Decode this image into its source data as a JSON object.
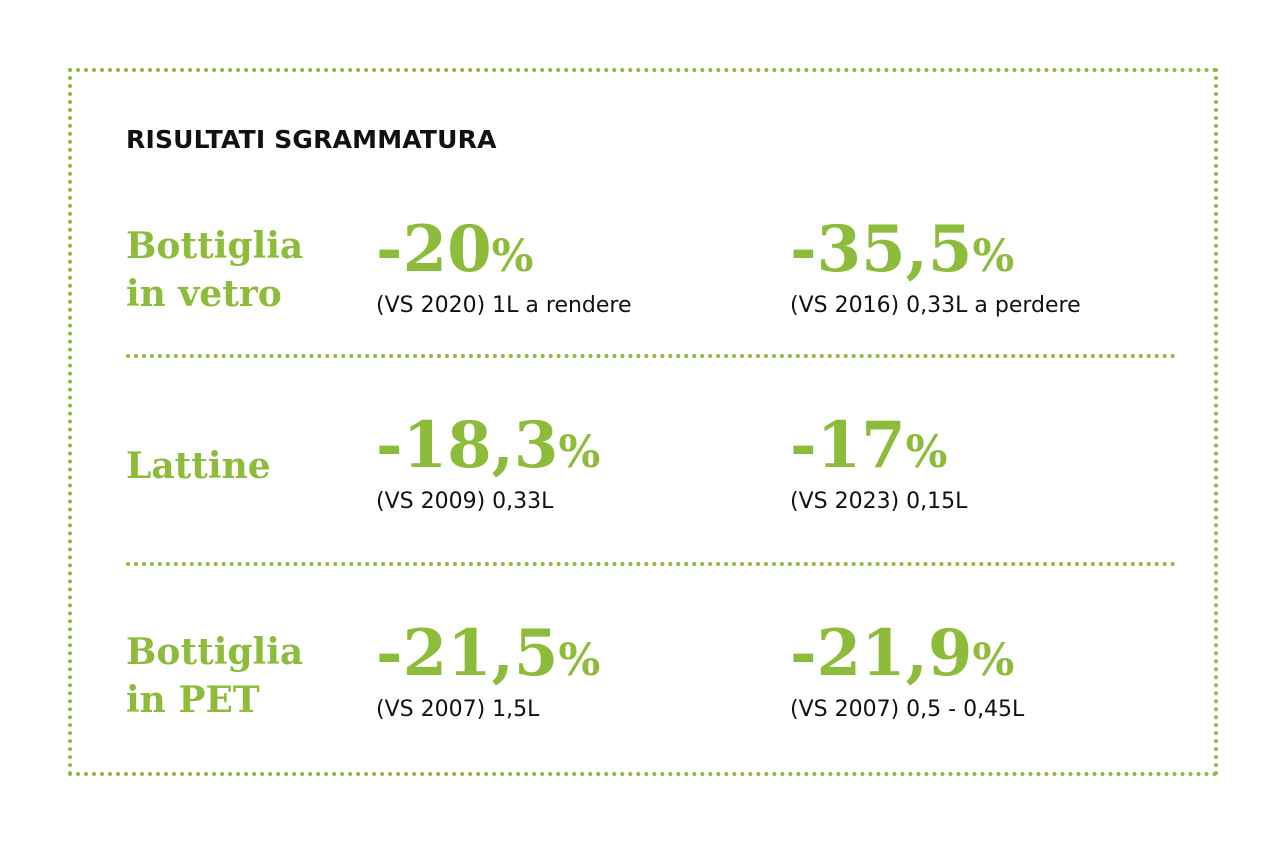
{
  "title": "RISULTATI SGRAMMATURA",
  "rows": [
    {
      "category": "Bottiglia\nin vetro",
      "stats": [
        {
          "value": "-20",
          "unit": "%",
          "note": "(VS 2020) 1L a rendere"
        },
        {
          "value": "-35,5",
          "unit": "%",
          "note": "(VS 2016) 0,33L a perdere"
        }
      ]
    },
    {
      "category": "Lattine",
      "stats": [
        {
          "value": "-18,3",
          "unit": "%",
          "note": "(VS 2009) 0,33L"
        },
        {
          "value": "-17",
          "unit": "%",
          "note": "(VS 2023) 0,15L"
        }
      ]
    },
    {
      "category": "Bottiglia\nin PET",
      "stats": [
        {
          "value": "-21,5",
          "unit": "%",
          "note": "(VS 2007) 1,5L"
        },
        {
          "value": "-21,9",
          "unit": "%",
          "note": "(VS 2007) 0,5 - 0,45L"
        }
      ]
    }
  ],
  "colors": {
    "accent": "#8dbb3a",
    "text": "#111111",
    "background": "#ffffff"
  }
}
